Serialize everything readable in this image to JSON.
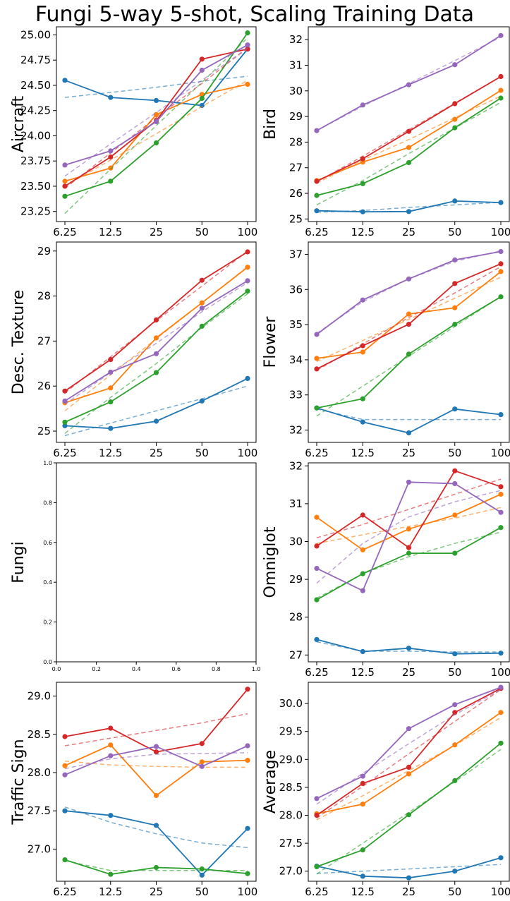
{
  "chart_data": {
    "type": "line",
    "title": "Fungi 5-way 5-shot, Scaling Training Data",
    "x_categories": [
      "6.25",
      "12.5",
      "25",
      "50",
      "100"
    ],
    "series_colors": [
      "#1f77b4",
      "#ff7f0e",
      "#2ca02c",
      "#d62728",
      "#9467bd"
    ],
    "panels": [
      {
        "ylabel": "Aircraft",
        "ylim": [
          23.15,
          25.08
        ],
        "yticks": [
          "23.25",
          "23.50",
          "23.75",
          "24.00",
          "24.25",
          "24.50",
          "24.75",
          "25.00"
        ],
        "series": [
          {
            "values": [
              24.55,
              24.38,
              24.35,
              24.3,
              24.86
            ],
            "trend": [
              24.38,
              24.43,
              24.48,
              24.54,
              24.59
            ]
          },
          {
            "values": [
              23.55,
              23.68,
              24.21,
              24.41,
              24.51
            ],
            "trend": [
              23.5,
              23.76,
              24.02,
              24.29,
              24.55
            ]
          },
          {
            "values": [
              23.4,
              23.55,
              23.93,
              24.37,
              25.02
            ],
            "trend": [
              23.23,
              23.67,
              24.1,
              24.53,
              24.97
            ]
          },
          {
            "values": [
              23.5,
              23.79,
              24.15,
              24.76,
              24.86
            ],
            "trend": [
              23.48,
              23.83,
              24.18,
              24.52,
              24.87
            ]
          },
          {
            "values": [
              23.71,
              23.85,
              24.14,
              24.65,
              24.9
            ],
            "trend": [
              23.6,
              23.92,
              24.23,
              24.55,
              24.87
            ]
          }
        ]
      },
      {
        "ylabel": "Bird",
        "ylim": [
          24.9,
          32.5
        ],
        "yticks": [
          "25",
          "26",
          "27",
          "28",
          "29",
          "30",
          "31",
          "32"
        ],
        "series": [
          {
            "values": [
              25.32,
              25.28,
              25.29,
              25.7,
              25.64
            ],
            "trend": [
              25.26,
              25.33,
              25.45,
              25.55,
              25.65
            ]
          },
          {
            "values": [
              26.5,
              27.22,
              27.79,
              28.89,
              30.02
            ],
            "trend": [
              26.4,
              27.3,
              28.1,
              28.95,
              29.8
            ]
          },
          {
            "values": [
              25.92,
              26.38,
              27.2,
              28.56,
              29.72
            ],
            "trend": [
              25.55,
              26.5,
              27.55,
              28.55,
              29.55
            ]
          },
          {
            "values": [
              26.47,
              27.35,
              28.42,
              29.5,
              30.56
            ],
            "trend": [
              26.45,
              27.45,
              28.48,
              29.52,
              30.56
            ]
          },
          {
            "values": [
              28.45,
              29.45,
              30.24,
              31.02,
              32.16
            ],
            "trend": [
              28.45,
              29.4,
              30.28,
              31.18,
              32.1
            ]
          }
        ]
      },
      {
        "ylabel": "Desc. Texture",
        "ylim": [
          24.75,
          29.2
        ],
        "yticks": [
          "25",
          "26",
          "27",
          "28",
          "29"
        ],
        "series": [
          {
            "values": [
              25.12,
              25.06,
              25.22,
              25.67,
              26.17
            ],
            "trend": [
              24.9,
              25.18,
              25.45,
              25.72,
              26.0
            ]
          },
          {
            "values": [
              25.63,
              25.96,
              27.07,
              27.85,
              28.64
            ],
            "trend": [
              25.45,
              26.25,
              27.05,
              27.85,
              28.65
            ]
          },
          {
            "values": [
              25.2,
              25.65,
              26.3,
              27.33,
              28.11
            ],
            "trend": [
              24.95,
              25.75,
              26.5,
              27.3,
              28.05
            ]
          },
          {
            "values": [
              25.89,
              26.59,
              27.47,
              28.35,
              28.98
            ],
            "trend": [
              25.85,
              26.65,
              27.45,
              28.22,
              29.0
            ]
          },
          {
            "values": [
              25.67,
              26.31,
              26.72,
              27.73,
              28.34
            ],
            "trend": [
              25.6,
              26.3,
              26.95,
              27.65,
              28.3
            ]
          }
        ]
      },
      {
        "ylabel": "Flower",
        "ylim": [
          31.65,
          37.35
        ],
        "yticks": [
          "32",
          "33",
          "34",
          "35",
          "36",
          "37"
        ],
        "series": [
          {
            "values": [
              32.63,
              32.23,
              31.92,
              32.6,
              32.44
            ],
            "trend": [
              32.6,
              32.3,
              32.3,
              32.3,
              32.3
            ]
          },
          {
            "values": [
              34.04,
              34.22,
              35.3,
              35.48,
              36.51
            ],
            "trend": [
              33.95,
              34.55,
              35.15,
              35.75,
              36.35
            ]
          },
          {
            "values": [
              32.63,
              32.89,
              34.16,
              35.01,
              35.79
            ],
            "trend": [
              32.4,
              33.25,
              34.1,
              34.95,
              35.8
            ]
          },
          {
            "values": [
              33.74,
              34.4,
              35.01,
              36.17,
              36.73
            ],
            "trend": [
              33.7,
              34.45,
              35.2,
              35.9,
              36.65
            ]
          },
          {
            "values": [
              34.72,
              35.7,
              36.3,
              36.84,
              37.08
            ],
            "trend": [
              34.75,
              35.65,
              36.3,
              36.8,
              37.1
            ]
          }
        ]
      },
      {
        "ylabel": "Fungi",
        "ylim": [
          0,
          1
        ],
        "xlim": [
          0,
          1
        ],
        "empty": true,
        "yticks": [
          "0.0",
          "0.2",
          "0.4",
          "0.6",
          "0.8",
          "1.0"
        ],
        "xticks": [
          "0.0",
          "0.2",
          "0.4",
          "0.6",
          "0.8",
          "1.0"
        ],
        "series": []
      },
      {
        "ylabel": "Omniglot",
        "ylim": [
          26.82,
          32.08
        ],
        "yticks": [
          "27",
          "28",
          "29",
          "30",
          "31",
          "32"
        ],
        "series": [
          {
            "values": [
              27.41,
              27.09,
              27.18,
              27.03,
              27.05
            ],
            "trend": [
              27.35,
              27.1,
              27.1,
              27.08,
              27.08
            ]
          },
          {
            "values": [
              30.64,
              29.78,
              30.33,
              30.7,
              31.25
            ],
            "trend": [
              29.95,
              30.18,
              30.4,
              30.62,
              30.9
            ]
          },
          {
            "values": [
              28.46,
              29.15,
              29.69,
              29.69,
              30.37
            ],
            "trend": [
              28.5,
              29.15,
              29.6,
              29.95,
              30.25
            ]
          },
          {
            "values": [
              29.88,
              30.7,
              29.84,
              31.87,
              31.45
            ],
            "trend": [
              30.1,
              30.45,
              30.85,
              31.25,
              31.65
            ]
          },
          {
            "values": [
              29.29,
              28.7,
              31.57,
              31.53,
              30.77
            ],
            "trend": [
              28.9,
              29.95,
              30.65,
              31.05,
              31.35
            ]
          }
        ]
      },
      {
        "ylabel": "Traffic Sign",
        "ylim": [
          26.58,
          29.18
        ],
        "yticks": [
          "27.0",
          "27.5",
          "28.0",
          "28.5",
          "29.0"
        ],
        "series": [
          {
            "values": [
              27.5,
              27.44,
              27.31,
              26.66,
              27.27
            ],
            "trend": [
              27.55,
              27.35,
              27.2,
              27.08,
              27.02
            ]
          },
          {
            "values": [
              28.09,
              28.36,
              27.7,
              28.14,
              28.16
            ],
            "trend": [
              28.15,
              28.1,
              28.08,
              28.07,
              28.07
            ]
          },
          {
            "values": [
              26.86,
              26.67,
              26.76,
              26.74,
              26.68
            ],
            "trend": [
              26.85,
              26.72,
              26.72,
              26.72,
              26.72
            ]
          },
          {
            "values": [
              28.47,
              28.58,
              28.27,
              28.38,
              29.09
            ],
            "trend": [
              28.35,
              28.45,
              28.55,
              28.65,
              28.77
            ]
          },
          {
            "values": [
              27.97,
              28.22,
              28.34,
              28.08,
              28.35
            ],
            "trend": [
              28.05,
              28.18,
              28.24,
              28.25,
              28.26
            ]
          }
        ]
      },
      {
        "ylabel": "Average",
        "ylim": [
          26.82,
          30.38
        ],
        "yticks": [
          "27.0",
          "27.5",
          "28.0",
          "28.5",
          "29.0",
          "29.5",
          "30.0"
        ],
        "series": [
          {
            "values": [
              27.09,
              26.91,
              26.88,
              27.0,
              27.24
            ],
            "trend": [
              26.96,
              27.0,
              27.04,
              27.08,
              27.12
            ]
          },
          {
            "values": [
              28.03,
              28.2,
              28.74,
              29.26,
              29.84
            ],
            "trend": [
              27.92,
              28.35,
              28.8,
              29.25,
              29.75
            ]
          },
          {
            "values": [
              27.08,
              27.38,
              28.01,
              28.62,
              29.29
            ],
            "trend": [
              26.95,
              27.5,
              28.05,
              28.6,
              29.18
            ]
          },
          {
            "values": [
              28.0,
              28.57,
              28.86,
              29.84,
              30.27
            ],
            "trend": [
              27.95,
              28.52,
              29.1,
              29.68,
              30.25
            ]
          },
          {
            "values": [
              28.3,
              28.7,
              29.55,
              29.98,
              30.29
            ],
            "trend": [
              28.2,
              28.75,
              29.28,
              29.8,
              30.25
            ]
          }
        ]
      }
    ]
  }
}
